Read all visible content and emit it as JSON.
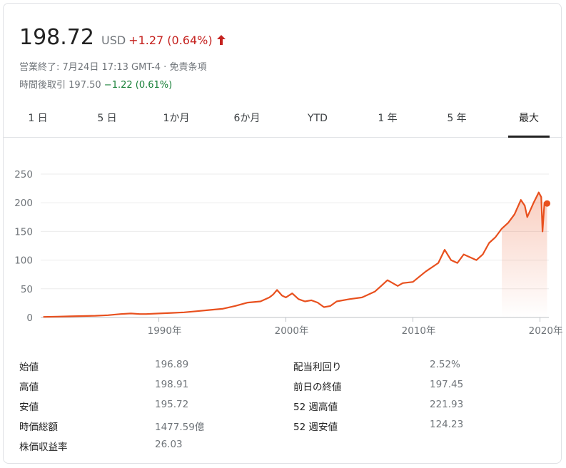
{
  "quote": {
    "price": "198.72",
    "currency": "USD",
    "change": "+1.27 (0.64%)",
    "status_line": "営業終了: 7月24日 17:13 GMT-4 · 免責条項",
    "after_hours_label": "時間後取引",
    "after_hours_price": "197.50",
    "after_hours_change": "−1.22 (0.61%)",
    "up_color": "#c5221f",
    "down_color": "#188038"
  },
  "tabs": [
    {
      "label": "1 日"
    },
    {
      "label": "5 日"
    },
    {
      "label": "1か月"
    },
    {
      "label": "6か月"
    },
    {
      "label": "YTD"
    },
    {
      "label": "1 年"
    },
    {
      "label": "5 年"
    },
    {
      "label": "最大",
      "selected": true
    }
  ],
  "chart_data": {
    "type": "line",
    "series_color": "#e8501e",
    "yticks": [
      "250",
      "200",
      "150",
      "100",
      "50",
      "0"
    ],
    "ylim": [
      0,
      250
    ],
    "xticks": [
      "1990年",
      "2000年",
      "2010年",
      "2020年"
    ],
    "xlim": [
      1980.7,
      2020.7
    ],
    "grid": true,
    "x": [
      1980.9,
      1982,
      1983,
      1984,
      1985,
      1986,
      1987,
      1987.8,
      1988.5,
      1989,
      1990,
      1991,
      1992,
      1993,
      1994,
      1995,
      1996,
      1997,
      1998,
      1998.7,
      1999,
      1999.3,
      1999.7,
      2000,
      2000.5,
      2001,
      2001.5,
      2002,
      2002.5,
      2003,
      2003.5,
      2004,
      2005,
      2006,
      2007,
      2007.5,
      2008,
      2008.8,
      2009.2,
      2010,
      2011,
      2012,
      2012.5,
      2013,
      2013.5,
      2014,
      2014.5,
      2015,
      2015.5,
      2016,
      2016.5,
      2017,
      2017.5,
      2018,
      2018.5,
      2018.8,
      2019,
      2019.5,
      2019.9,
      2020.1,
      2020.2,
      2020.35,
      2020.45,
      2020.56
    ],
    "values": [
      1,
      1.5,
      2,
      2.5,
      3,
      4,
      6,
      7,
      6,
      6,
      7,
      8,
      9,
      11,
      13,
      15,
      20,
      26,
      28,
      35,
      40,
      48,
      38,
      35,
      42,
      32,
      28,
      30,
      26,
      18,
      20,
      28,
      32,
      35,
      45,
      55,
      65,
      55,
      60,
      62,
      80,
      95,
      118,
      100,
      95,
      110,
      105,
      100,
      110,
      130,
      140,
      155,
      165,
      180,
      205,
      195,
      175,
      200,
      218,
      210,
      150,
      200,
      199,
      198.72
    ]
  },
  "stats": {
    "left": [
      {
        "label": "始値",
        "value": "196.89"
      },
      {
        "label": "高値",
        "value": "198.91"
      },
      {
        "label": "安値",
        "value": "195.72"
      },
      {
        "label": "時価総額",
        "value": "1477.59億"
      },
      {
        "label": "株価収益率",
        "value": "26.03"
      }
    ],
    "right": [
      {
        "label": "配当利回り",
        "value": "2.52%"
      },
      {
        "label": "前日の終値",
        "value": "197.45"
      },
      {
        "label": "52 週高値",
        "value": "221.93"
      },
      {
        "label": "52 週安値",
        "value": "124.23"
      }
    ]
  }
}
